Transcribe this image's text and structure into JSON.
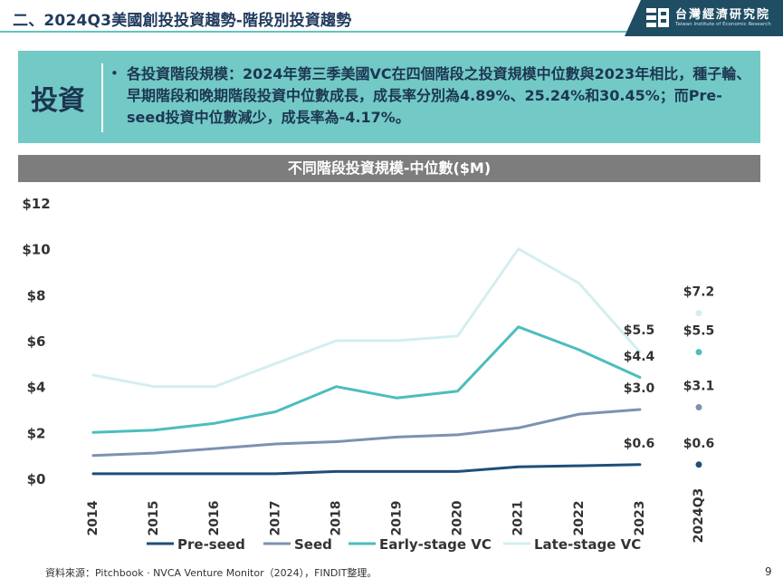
{
  "header": {
    "title": "二、2024Q3美國創投投資趨勢-階段別投資趨勢",
    "logo_cn": "台灣經濟研究院",
    "logo_en": "Taiwan Institute of Economic Research"
  },
  "summary": {
    "tag": "投資",
    "bullet": "•",
    "text": "各投資階段規模：2024年第三季美國VC在四個階段之投資規模中位數與2023年相比，種子輪、早期階段和晚期階段投資中位數成長，成長率分別為4.89%、25.24%和30.45%；而Pre-seed投資中位數減少，成長率為-4.17%。"
  },
  "chart_data": {
    "type": "line",
    "title": "不同階段投資規模-中位數($M)",
    "categories": [
      "2014",
      "2015",
      "2016",
      "2017",
      "2018",
      "2019",
      "2020",
      "2021",
      "2022",
      "2023"
    ],
    "extra_category": "2024Q3",
    "ylim": [
      0,
      12
    ],
    "yticks": [
      "$0",
      "$2",
      "$4",
      "$6",
      "$8",
      "$10",
      "$12"
    ],
    "grid": false,
    "legend_position": "bottom",
    "series": [
      {
        "name": "Pre-seed",
        "color": "#1f4e79",
        "values": [
          0.2,
          0.2,
          0.2,
          0.2,
          0.3,
          0.3,
          0.3,
          0.5,
          0.55,
          0.6
        ],
        "q3_value": 0.6,
        "label_2023": "$0.6",
        "label_q3": "$0.6"
      },
      {
        "name": "Seed",
        "color": "#7c92b0",
        "values": [
          1.0,
          1.1,
          1.3,
          1.5,
          1.6,
          1.8,
          1.9,
          2.2,
          2.8,
          3.0
        ],
        "q3_value": 3.1,
        "label_2023": "$3.0",
        "label_q3": "$3.1"
      },
      {
        "name": "Early-stage VC",
        "color": "#4dbdbd",
        "values": [
          2.0,
          2.1,
          2.4,
          2.9,
          4.0,
          3.5,
          3.8,
          6.6,
          5.6,
          4.4
        ],
        "q3_value": 5.5,
        "label_2023": "$4.4",
        "label_q3": "$5.5"
      },
      {
        "name": "Late-stage VC",
        "color": "#d3eff0",
        "values": [
          4.5,
          4.0,
          4.0,
          5.0,
          6.0,
          6.0,
          6.2,
          10.0,
          8.5,
          5.5
        ],
        "q3_value": 7.2,
        "label_2023": "$5.5",
        "label_q3": "$7.2"
      }
    ]
  },
  "footer": {
    "source": "資料來源：Pitchbook · NVCA Venture Monitor（2024），FINDIT整理。",
    "page": "9"
  }
}
